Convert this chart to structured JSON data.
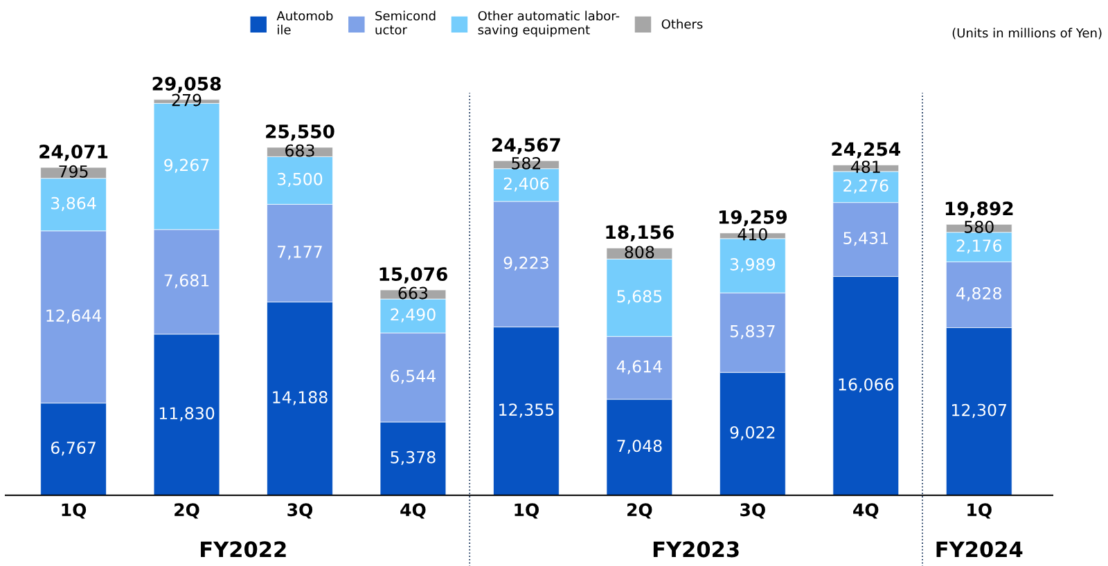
{
  "chart_data": {
    "type": "bar",
    "stacked": true,
    "legend": "top",
    "grid": false,
    "categories": [
      "1Q",
      "2Q",
      "3Q",
      "4Q",
      "1Q",
      "2Q",
      "3Q",
      "4Q",
      "1Q"
    ],
    "series": [
      {
        "name": "Automob\nile",
        "color": "#0753c2",
        "values": [
          6767,
          11830,
          14188,
          5378,
          12355,
          7048,
          9022,
          16066,
          12307
        ],
        "value_labels": [
          "6,767",
          "11,830",
          "14,188",
          "5,378",
          "12,355",
          "7,048",
          "9,022",
          "16,066",
          "12,307"
        ]
      },
      {
        "name": "Semicond\nuctor",
        "color": "#7fa2e8",
        "values": [
          12644,
          7681,
          7177,
          6544,
          9223,
          4614,
          5837,
          5431,
          4828
        ],
        "value_labels": [
          "12,644",
          "7,681",
          "7,177",
          "6,544",
          "9,223",
          "4,614",
          "5,837",
          "5,431",
          "4,828"
        ]
      },
      {
        "name": "Other automatic labor-\nsaving equipment",
        "color": "#75cdfc",
        "values": [
          3864,
          9267,
          3500,
          2490,
          2406,
          5685,
          3989,
          2276,
          2176
        ],
        "value_labels": [
          "3,864",
          "9,267",
          "3,500",
          "2,490",
          "2,406",
          "5,685",
          "3,989",
          "2,276",
          "2,176"
        ]
      },
      {
        "name": "Others",
        "color": "#a6a6a6",
        "values": [
          795,
          279,
          683,
          663,
          582,
          808,
          410,
          481,
          580
        ],
        "value_labels": [
          "795",
          "279",
          "683",
          "663",
          "582",
          "808",
          "410",
          "481",
          "580"
        ]
      }
    ],
    "totals": [
      "24,071",
      "29,058",
      "25,550",
      "15,076",
      "24,567",
      "18,156",
      "19,259",
      "24,254",
      "19,892"
    ],
    "annotations": [
      "(Units in millions of Yen)",
      "FY2022",
      "FY2023",
      "FY2024"
    ]
  }
}
